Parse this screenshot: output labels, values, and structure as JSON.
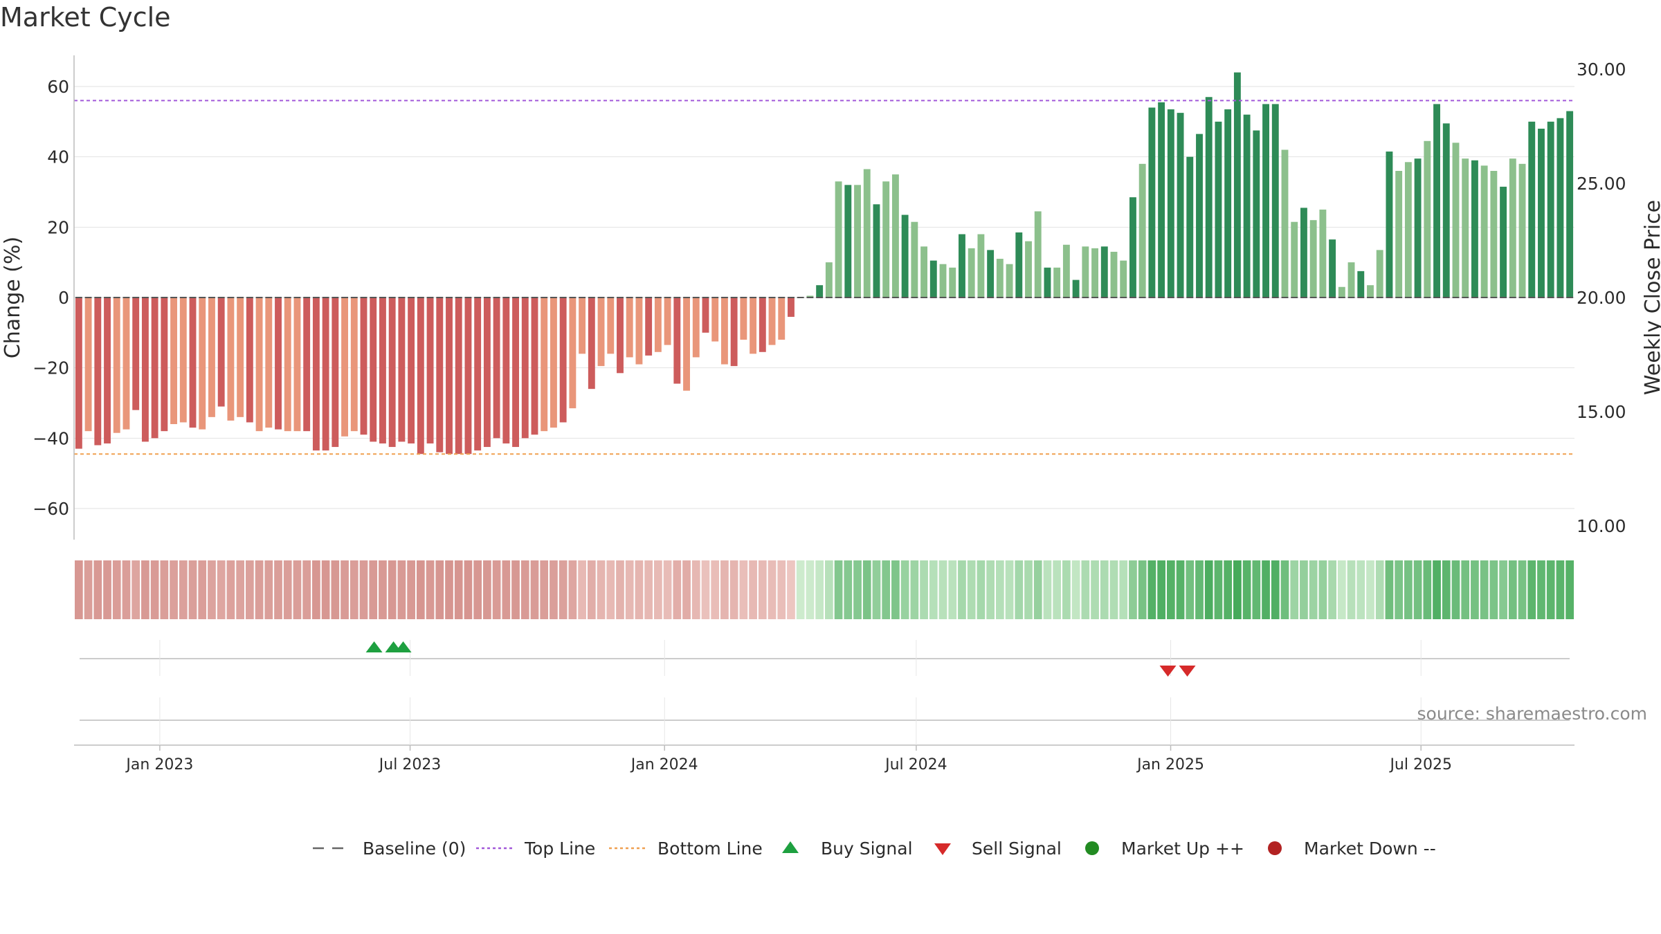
{
  "title": "Market Cycle",
  "source": "source: sharemaestro.com",
  "colors": {
    "grid": "#e2e2e2",
    "axis": "#bbbbbb",
    "top_line": "#a259d9",
    "bottom_line": "#f0a050",
    "baseline": "#555555",
    "neg_dark": "#cd5c5c",
    "neg_light": "#e9967a",
    "pos_dark": "#2e8b57",
    "pos_light": "#8cc08c",
    "buy": "#1ea040",
    "sell": "#d62a2a",
    "market_up": "#228b22",
    "market_down": "#b22222"
  },
  "chart_data": {
    "type": "bar",
    "title": "Market Cycle",
    "ylabel_left": "Change (%)",
    "ylabel_right": "Weekly Close Price",
    "ylim_left": [
      -70,
      70
    ],
    "ylim_right": [
      10,
      30
    ],
    "yticks_left": [
      "60",
      "40",
      "20",
      "0",
      "−20",
      "−40",
      "−60"
    ],
    "yticks_right": [
      "30.00",
      "25.00",
      "20.00",
      "15.00",
      "10.00"
    ],
    "x_start": "2022-10-31",
    "x_end": "2025-10-20",
    "date_ticks": [
      {
        "date": "2023-01-01",
        "label": "Jan 2023"
      },
      {
        "date": "2023-07-01",
        "label": "Jul 2023"
      },
      {
        "date": "2024-01-01",
        "label": "Jan 2024"
      },
      {
        "date": "2024-07-01",
        "label": "Jul 2024"
      },
      {
        "date": "2025-01-01",
        "label": "Jan 2025"
      },
      {
        "date": "2025-07-01",
        "label": "Jul 2025"
      }
    ],
    "top_line": 56,
    "bottom_line": -44.5,
    "baseline": 0,
    "week_start": "2022-10-31",
    "change": [
      -43,
      -38,
      -42,
      -41.5,
      -38.5,
      -37.5,
      -32,
      -41,
      -40,
      -38,
      -36,
      -35.5,
      -37,
      -37.5,
      -34,
      -31,
      -35,
      -34,
      -35.5,
      -38,
      -37,
      -37.5,
      -38,
      -38,
      -38,
      -43.5,
      -43.5,
      -42.5,
      -39.5,
      -38,
      -39,
      -41,
      -41.5,
      -42.5,
      -41,
      -41.5,
      -44.5,
      -41.5,
      -44,
      -44.5,
      -44.5,
      -44.5,
      -43.5,
      -42.5,
      -40,
      -41.5,
      -42.5,
      -40,
      -39,
      -38,
      -37,
      -35.5,
      -31.5,
      -16,
      -26,
      -19.5,
      -16,
      -21.5,
      -17,
      -19,
      -16.5,
      -15.5,
      -13.5,
      -24.5,
      -26.5,
      -17,
      -10,
      -12.5,
      -19,
      -19.5,
      -12,
      -16,
      -15.5,
      -13.5,
      -12,
      -5.5,
      0,
      0.5,
      3.5,
      10,
      33,
      32,
      32,
      36.5,
      26.5,
      33,
      35,
      23.5,
      21.5,
      14.5,
      10.5,
      9.5,
      8.5,
      18,
      14,
      18,
      13.5,
      11,
      9.5,
      18.5,
      16,
      24.5,
      8.5,
      8.5,
      15,
      5,
      14.5,
      14,
      14.5,
      13,
      10.5,
      28.5,
      38,
      54,
      55.5,
      53.5,
      52.5,
      40,
      46.5,
      57,
      50,
      53.5,
      64,
      52,
      47.5,
      55,
      55,
      42,
      21.5,
      25.5,
      22,
      25,
      16.5,
      3,
      10,
      7.5,
      3.5,
      13.5,
      41.5,
      36,
      38.5,
      39.5,
      44.5,
      55,
      49.5,
      44,
      39.5,
      39,
      37.5,
      36,
      31.5,
      39.5,
      38,
      50,
      48,
      50,
      51,
      53
    ],
    "signals": {
      "buy": [
        "2023-06-05",
        "2023-06-19",
        "2023-06-26"
      ],
      "sell": [
        "2024-12-30",
        "2025-01-13"
      ]
    },
    "legend": [
      {
        "type": "dash",
        "label": "Baseline (0)"
      },
      {
        "type": "dot-purple",
        "label": "Top Line"
      },
      {
        "type": "dot-orange",
        "label": "Bottom Line"
      },
      {
        "type": "tri-up",
        "label": "Buy Signal"
      },
      {
        "type": "tri-down",
        "label": "Sell Signal"
      },
      {
        "type": "circle-green",
        "label": "Market Up ++"
      },
      {
        "type": "circle-red",
        "label": "Market Down --"
      }
    ]
  }
}
